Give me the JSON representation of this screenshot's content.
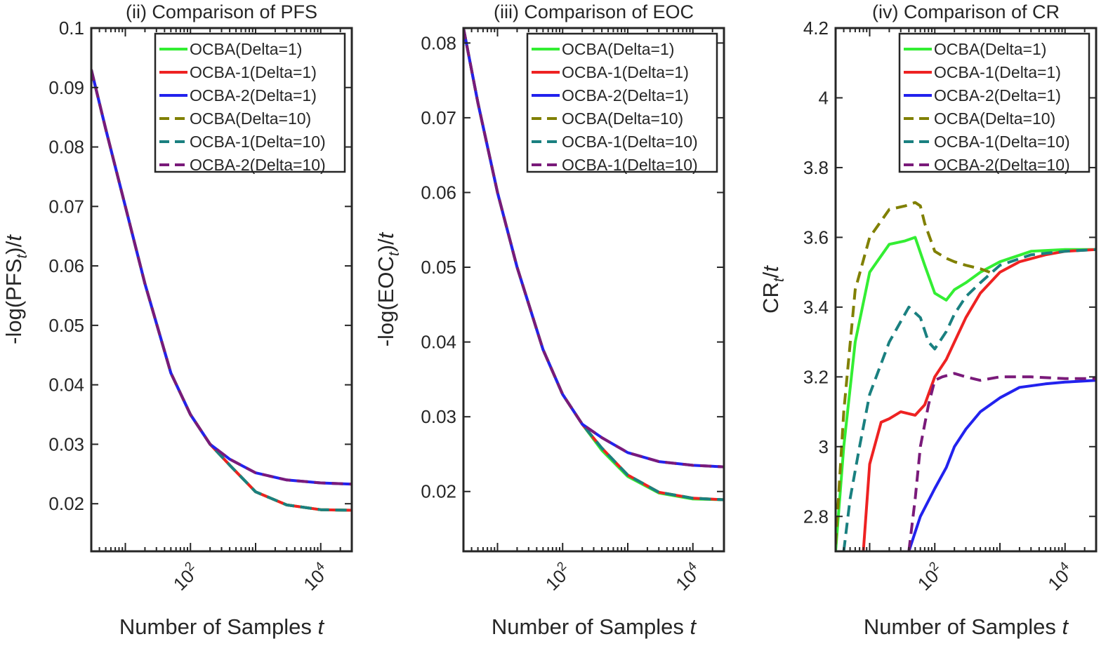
{
  "chart_data": [
    {
      "type": "line",
      "title": "(ii) Comparison of PFS",
      "ylabel_parts": [
        "-log(PFS",
        "t",
        ")/",
        "t"
      ],
      "xlabel_parts": [
        "Number of Samples ",
        "t"
      ],
      "xscale": "log",
      "xlim": [
        3,
        30000
      ],
      "ylim": [
        0.012,
        0.1
      ],
      "yticks": [
        0.02,
        0.03,
        0.04,
        0.05,
        0.06,
        0.07,
        0.08,
        0.09,
        0.1
      ],
      "ytick_labels": [
        "0.02",
        "0.03",
        "0.04",
        "0.05",
        "0.06",
        "0.07",
        "0.08",
        "0.09",
        "0.1"
      ],
      "xticks": [
        100,
        10000
      ],
      "xtick_labels": [
        {
          "base": "10",
          "exp": "2"
        },
        {
          "base": "10",
          "exp": "4"
        }
      ],
      "legend_position": "top-right",
      "series": [
        {
          "name": "OCBA(Delta=1)",
          "color": "#33ee33",
          "dash": "solid",
          "x": [
            3,
            5,
            10,
            20,
            50,
            100,
            200,
            400,
            1000,
            3000,
            10000,
            30000
          ],
          "y": [
            0.093,
            0.083,
            0.07,
            0.057,
            0.042,
            0.035,
            0.03,
            0.0265,
            0.022,
            0.0198,
            0.019,
            0.0189
          ]
        },
        {
          "name": "OCBA-1(Delta=1)",
          "color": "#ee2222",
          "dash": "solid",
          "x": [
            3,
            5,
            10,
            20,
            50,
            100,
            200,
            400,
            1000,
            3000,
            10000,
            30000
          ],
          "y": [
            0.093,
            0.083,
            0.07,
            0.057,
            0.042,
            0.035,
            0.03,
            0.0265,
            0.022,
            0.0198,
            0.019,
            0.0189
          ]
        },
        {
          "name": "OCBA-2(Delta=1)",
          "color": "#2222ee",
          "dash": "solid",
          "x": [
            3,
            5,
            10,
            20,
            50,
            100,
            200,
            400,
            1000,
            3000,
            10000,
            30000
          ],
          "y": [
            0.093,
            0.083,
            0.07,
            0.057,
            0.042,
            0.035,
            0.03,
            0.0275,
            0.0252,
            0.024,
            0.0235,
            0.0233
          ]
        },
        {
          "name": "OCBA(Delta=10)",
          "color": "#808000",
          "dash": "dashed",
          "x": [
            3,
            5,
            10,
            20,
            50,
            100,
            200,
            400,
            1000,
            3000,
            10000,
            30000
          ],
          "y": [
            0.093,
            0.083,
            0.07,
            0.057,
            0.042,
            0.035,
            0.03,
            0.0265,
            0.022,
            0.0198,
            0.019,
            0.0189
          ]
        },
        {
          "name": "OCBA-1(Delta=10)",
          "color": "#1a8080",
          "dash": "dashed",
          "x": [
            3,
            5,
            10,
            20,
            50,
            100,
            200,
            400,
            1000,
            3000,
            10000,
            30000
          ],
          "y": [
            0.093,
            0.083,
            0.07,
            0.057,
            0.042,
            0.035,
            0.03,
            0.0265,
            0.022,
            0.0198,
            0.019,
            0.0189
          ]
        },
        {
          "name": "OCBA-2(Delta=10)",
          "color": "#7a1a7a",
          "dash": "dashed",
          "x": [
            3,
            5,
            10,
            20,
            50,
            100,
            200,
            400,
            1000,
            3000,
            10000,
            30000
          ],
          "y": [
            0.093,
            0.083,
            0.07,
            0.057,
            0.042,
            0.035,
            0.03,
            0.0275,
            0.0252,
            0.024,
            0.0235,
            0.0233
          ]
        }
      ]
    },
    {
      "type": "line",
      "title": "(iii) Comparison of EOC",
      "ylabel_parts": [
        "-log(EOC",
        "t",
        ")/",
        "t"
      ],
      "xlabel_parts": [
        "Number of Samples ",
        "t"
      ],
      "xscale": "log",
      "xlim": [
        3,
        30000
      ],
      "ylim": [
        0.012,
        0.082
      ],
      "yticks": [
        0.02,
        0.03,
        0.04,
        0.05,
        0.06,
        0.07,
        0.08
      ],
      "ytick_labels": [
        "0.02",
        "0.03",
        "0.04",
        "0.05",
        "0.06",
        "0.07",
        "0.08"
      ],
      "xticks": [
        100,
        10000
      ],
      "xtick_labels": [
        {
          "base": "10",
          "exp": "2"
        },
        {
          "base": "10",
          "exp": "4"
        }
      ],
      "legend_position": "top-right",
      "series": [
        {
          "name": "OCBA(Delta=1)",
          "color": "#33ee33",
          "dash": "solid",
          "x": [
            3,
            5,
            10,
            20,
            50,
            100,
            200,
            400,
            1000,
            3000,
            10000,
            30000
          ],
          "y": [
            0.082,
            0.072,
            0.06,
            0.05,
            0.039,
            0.033,
            0.029,
            0.0255,
            0.022,
            0.0198,
            0.019,
            0.0189
          ]
        },
        {
          "name": "OCBA-1(Delta=1)",
          "color": "#ee2222",
          "dash": "solid",
          "x": [
            3,
            5,
            10,
            20,
            50,
            100,
            200,
            400,
            1000,
            3000,
            10000,
            30000
          ],
          "y": [
            0.082,
            0.072,
            0.06,
            0.05,
            0.039,
            0.033,
            0.029,
            0.0258,
            0.0222,
            0.0199,
            0.0191,
            0.0189
          ]
        },
        {
          "name": "OCBA-2(Delta=1)",
          "color": "#2222ee",
          "dash": "solid",
          "x": [
            3,
            5,
            10,
            20,
            50,
            100,
            200,
            400,
            1000,
            3000,
            10000,
            30000
          ],
          "y": [
            0.082,
            0.072,
            0.06,
            0.05,
            0.039,
            0.033,
            0.029,
            0.0272,
            0.0252,
            0.024,
            0.0235,
            0.0233
          ]
        },
        {
          "name": "OCBA(Delta=10)",
          "color": "#808000",
          "dash": "dashed",
          "x": [
            3,
            5,
            10,
            20,
            50,
            100,
            200,
            400,
            1000,
            3000,
            10000,
            30000
          ],
          "y": [
            0.082,
            0.072,
            0.06,
            0.05,
            0.039,
            0.033,
            0.029,
            0.0258,
            0.0222,
            0.0199,
            0.0191,
            0.0189
          ]
        },
        {
          "name": "OCBA-1(Delta=10)",
          "color": "#1a8080",
          "dash": "dashed",
          "x": [
            3,
            5,
            10,
            20,
            50,
            100,
            200,
            400,
            1000,
            3000,
            10000,
            30000
          ],
          "y": [
            0.082,
            0.072,
            0.06,
            0.05,
            0.039,
            0.033,
            0.029,
            0.0258,
            0.0222,
            0.0199,
            0.0191,
            0.0189
          ]
        },
        {
          "name": "OCBA-1(Delta=10)",
          "color": "#7a1a7a",
          "dash": "dashed",
          "x": [
            3,
            5,
            10,
            20,
            50,
            100,
            200,
            400,
            1000,
            3000,
            10000,
            30000
          ],
          "y": [
            0.082,
            0.072,
            0.06,
            0.05,
            0.039,
            0.033,
            0.029,
            0.0272,
            0.0252,
            0.024,
            0.0235,
            0.0233
          ]
        }
      ]
    },
    {
      "type": "line",
      "title": "(iv) Comparison of CR",
      "ylabel_parts": [
        "CR",
        "t",
        "/",
        "t"
      ],
      "xlabel_parts": [
        "Number of Samples ",
        "t"
      ],
      "xscale": "log",
      "xlim": [
        3,
        30000
      ],
      "ylim": [
        2.7,
        4.2
      ],
      "yticks": [
        2.8,
        3.0,
        3.2,
        3.4,
        3.6,
        3.8,
        4.0,
        4.2
      ],
      "ytick_labels": [
        "2.8",
        "3",
        "3.2",
        "3.4",
        "3.6",
        "3.8",
        "4",
        "4.2"
      ],
      "xticks": [
        100,
        10000
      ],
      "xtick_labels": [
        {
          "base": "10",
          "exp": "2"
        },
        {
          "base": "10",
          "exp": "4"
        }
      ],
      "legend_position": "top-right",
      "series": [
        {
          "name": "OCBA(Delta=1)",
          "color": "#33ee33",
          "dash": "solid",
          "x": [
            3,
            4,
            6,
            10,
            20,
            35,
            50,
            70,
            100,
            150,
            200,
            300,
            500,
            1000,
            3000,
            10000,
            30000
          ],
          "y": [
            2.7,
            3.0,
            3.3,
            3.5,
            3.58,
            3.59,
            3.6,
            3.52,
            3.44,
            3.42,
            3.45,
            3.47,
            3.5,
            3.53,
            3.56,
            3.565,
            3.565
          ]
        },
        {
          "name": "OCBA-1(Delta=1)",
          "color": "#ee2222",
          "dash": "solid",
          "x": [
            8,
            10,
            15,
            20,
            30,
            50,
            70,
            100,
            150,
            200,
            300,
            500,
            1000,
            2000,
            5000,
            10000,
            30000
          ],
          "y": [
            2.7,
            2.95,
            3.07,
            3.08,
            3.1,
            3.09,
            3.12,
            3.2,
            3.25,
            3.3,
            3.37,
            3.44,
            3.5,
            3.53,
            3.55,
            3.56,
            3.565
          ]
        },
        {
          "name": "OCBA-2(Delta=1)",
          "color": "#2222ee",
          "dash": "solid",
          "x": [
            40,
            60,
            100,
            150,
            200,
            300,
            500,
            1000,
            2000,
            5000,
            10000,
            30000
          ],
          "y": [
            2.7,
            2.8,
            2.88,
            2.94,
            3.0,
            3.05,
            3.1,
            3.14,
            3.17,
            3.18,
            3.185,
            3.19
          ]
        },
        {
          "name": "OCBA(Delta=10)",
          "color": "#808000",
          "dash": "dashed",
          "x": [
            3,
            4,
            6,
            10,
            20,
            35,
            50,
            60,
            70,
            100,
            150,
            200,
            300,
            500,
            700
          ],
          "y": [
            2.72,
            3.1,
            3.45,
            3.6,
            3.68,
            3.69,
            3.7,
            3.69,
            3.64,
            3.56,
            3.54,
            3.53,
            3.52,
            3.51,
            3.5
          ]
        },
        {
          "name": "OCBA-1(Delta=10)",
          "color": "#1a8080",
          "dash": "dashed",
          "x": [
            4,
            5,
            7,
            10,
            20,
            40,
            60,
            80,
            100,
            150,
            200,
            300,
            500,
            1000,
            3000,
            10000,
            30000
          ],
          "y": [
            2.7,
            2.85,
            3.0,
            3.15,
            3.3,
            3.4,
            3.37,
            3.3,
            3.28,
            3.33,
            3.38,
            3.43,
            3.47,
            3.52,
            3.55,
            3.56,
            3.565
          ]
        },
        {
          "name": "OCBA-2(Delta=10)",
          "color": "#7a1a7a",
          "dash": "dashed",
          "x": [
            40,
            50,
            60,
            80,
            100,
            130,
            200,
            300,
            500,
            1000,
            3000,
            10000,
            30000
          ],
          "y": [
            2.7,
            2.85,
            3.0,
            3.12,
            3.19,
            3.2,
            3.21,
            3.2,
            3.19,
            3.2,
            3.2,
            3.195,
            3.195
          ]
        }
      ]
    }
  ]
}
